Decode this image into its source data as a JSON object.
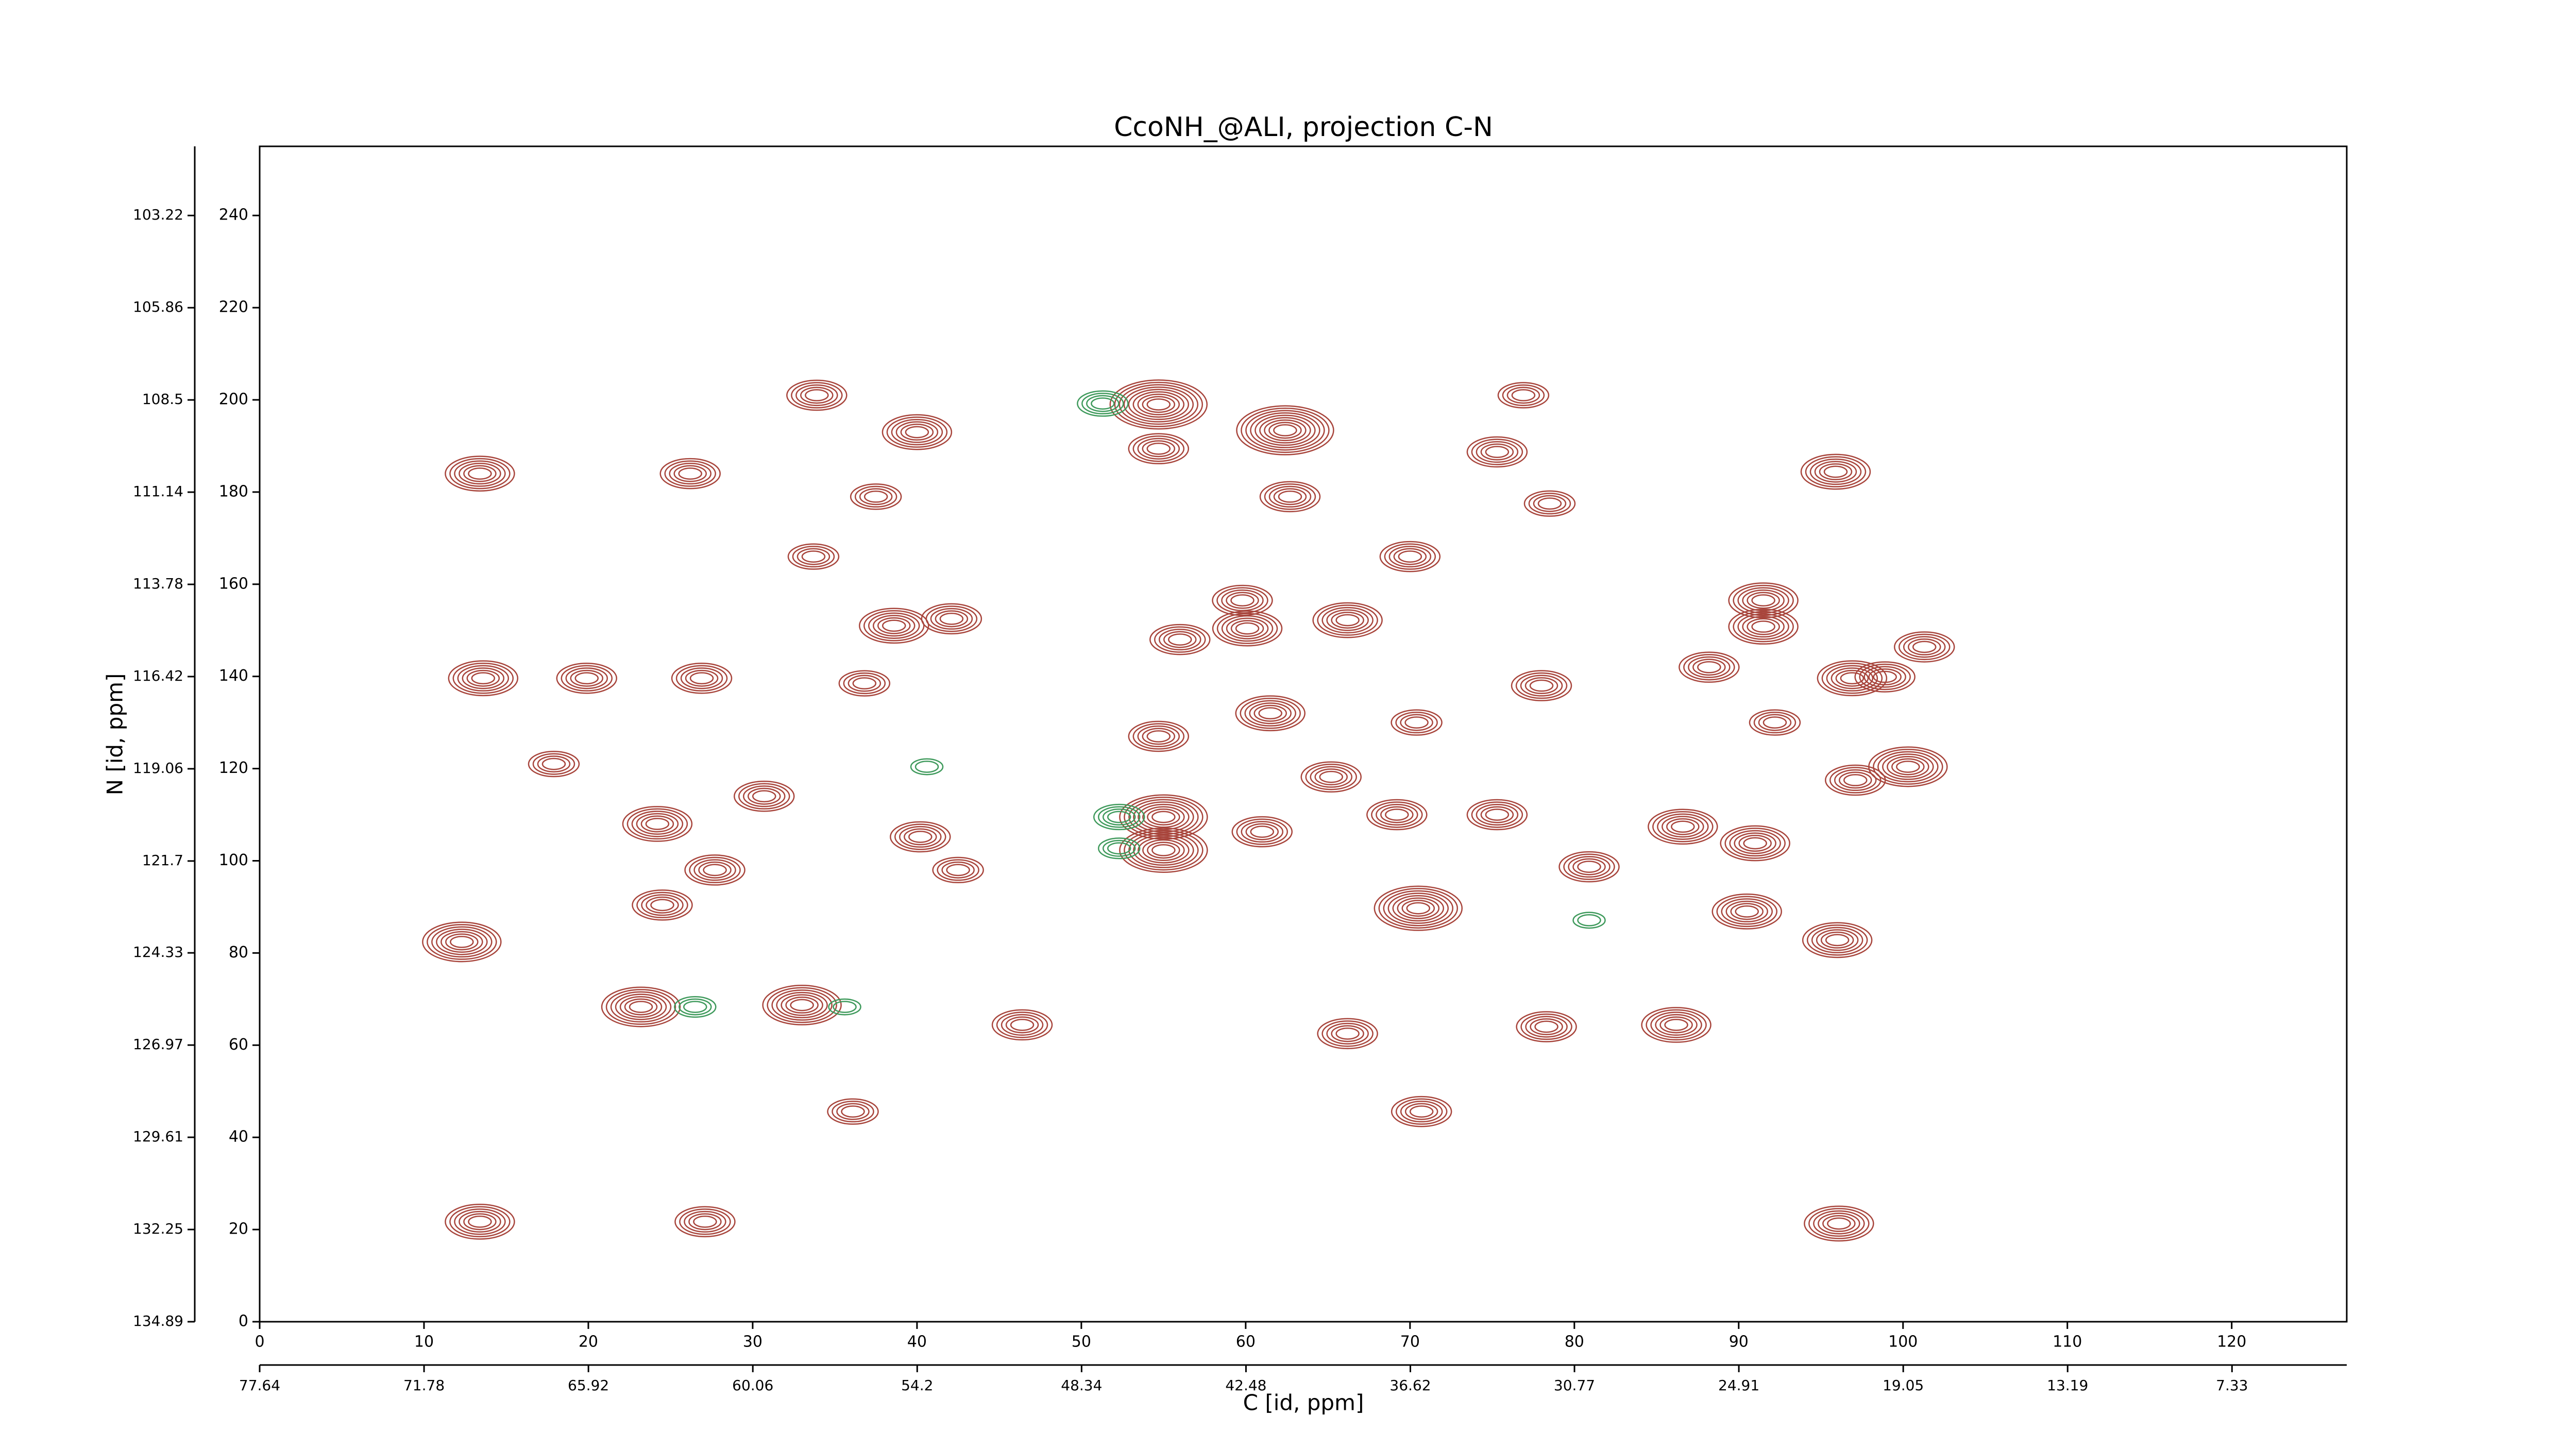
{
  "chart_data": {
    "type": "contour",
    "title": "CcoNH_@ALI, projection C-N",
    "xlabel": "C [id, ppm]",
    "ylabel": "N [id, ppm]",
    "xlim": [
      0,
      127
    ],
    "xticks": [
      0,
      10,
      20,
      30,
      40,
      50,
      60,
      70,
      80,
      90,
      100,
      110,
      120
    ],
    "ylim": [
      0,
      255
    ],
    "yticks": [
      0,
      20,
      40,
      60,
      80,
      100,
      120,
      140,
      160,
      180,
      200,
      220,
      240
    ],
    "x2lim": [
      77.64,
      3.24
    ],
    "x2ticks": [
      77.64,
      71.78,
      65.92,
      60.06,
      54.2,
      48.34,
      42.48,
      36.62,
      30.77,
      24.91,
      19.05,
      13.19,
      7.33
    ],
    "y2lim": [
      134.89,
      101.24
    ],
    "y2ticks": [
      134.89,
      132.25,
      129.61,
      126.97,
      124.33,
      121.7,
      119.06,
      116.42,
      113.78,
      111.14,
      108.5,
      105.86,
      103.22
    ],
    "positive_color": "#a8453c",
    "negative_color": "#3f9a5c",
    "peaks": [
      {
        "x": 13.4,
        "y": 184,
        "levels": 6
      },
      {
        "x": 13.6,
        "y": 139.6,
        "levels": 6
      },
      {
        "x": 12.3,
        "y": 82.4,
        "levels": 7
      },
      {
        "x": 13.4,
        "y": 21.7,
        "levels": 6
      },
      {
        "x": 23.2,
        "y": 68.3,
        "levels": 7
      },
      {
        "x": 24.2,
        "y": 108,
        "levels": 6
      },
      {
        "x": 17.9,
        "y": 121,
        "levels": 4
      },
      {
        "x": 19.9,
        "y": 139.6,
        "levels": 5
      },
      {
        "x": 26.9,
        "y": 139.6,
        "levels": 5
      },
      {
        "x": 26.2,
        "y": 184,
        "levels": 5
      },
      {
        "x": 27.1,
        "y": 21.7,
        "levels": 5
      },
      {
        "x": 33.9,
        "y": 201,
        "levels": 5
      },
      {
        "x": 40,
        "y": 193,
        "levels": 6
      },
      {
        "x": 37.5,
        "y": 179,
        "levels": 4
      },
      {
        "x": 33.7,
        "y": 166,
        "levels": 4
      },
      {
        "x": 38.6,
        "y": 151,
        "levels": 6
      },
      {
        "x": 42.1,
        "y": 152.5,
        "levels": 5
      },
      {
        "x": 36.8,
        "y": 138.5,
        "levels": 4
      },
      {
        "x": 33,
        "y": 68.7,
        "levels": 7
      },
      {
        "x": 36.1,
        "y": 45.6,
        "levels": 4
      },
      {
        "x": 46.4,
        "y": 64.4,
        "levels": 5
      },
      {
        "x": 54.7,
        "y": 199,
        "levels": 9
      },
      {
        "x": 54.7,
        "y": 189.4,
        "levels": 5
      },
      {
        "x": 56,
        "y": 148,
        "levels": 5
      },
      {
        "x": 54.7,
        "y": 127,
        "levels": 5
      },
      {
        "x": 55,
        "y": 109.5,
        "levels": 8
      },
      {
        "x": 55,
        "y": 102.3,
        "levels": 8
      },
      {
        "x": 62.4,
        "y": 193.4,
        "levels": 9
      },
      {
        "x": 62.7,
        "y": 179,
        "levels": 5
      },
      {
        "x": 59.8,
        "y": 156.5,
        "levels": 5
      },
      {
        "x": 60.1,
        "y": 150.4,
        "levels": 6
      },
      {
        "x": 61.5,
        "y": 132,
        "levels": 6
      },
      {
        "x": 66.2,
        "y": 152.2,
        "levels": 6
      },
      {
        "x": 70,
        "y": 166,
        "levels": 5
      },
      {
        "x": 70.4,
        "y": 130,
        "levels": 4
      },
      {
        "x": 70.5,
        "y": 89.7,
        "levels": 8
      },
      {
        "x": 70.7,
        "y": 45.6,
        "levels": 5
      },
      {
        "x": 66.2,
        "y": 62.5,
        "levels": 5
      },
      {
        "x": 76.9,
        "y": 201,
        "levels": 4
      },
      {
        "x": 75.3,
        "y": 188.7,
        "levels": 5
      },
      {
        "x": 78,
        "y": 138,
        "levels": 5
      },
      {
        "x": 78.3,
        "y": 64,
        "levels": 5
      },
      {
        "x": 78.5,
        "y": 177.5,
        "levels": 4
      },
      {
        "x": 86.2,
        "y": 64.4,
        "levels": 6
      },
      {
        "x": 91.5,
        "y": 156.5,
        "levels": 6
      },
      {
        "x": 91.5,
        "y": 150.8,
        "levels": 6
      },
      {
        "x": 95.9,
        "y": 184.4,
        "levels": 6
      },
      {
        "x": 96.9,
        "y": 139.6,
        "levels": 6
      },
      {
        "x": 98.9,
        "y": 139.9,
        "levels": 5
      },
      {
        "x": 100.3,
        "y": 120.4,
        "levels": 7
      },
      {
        "x": 101.3,
        "y": 146.4,
        "levels": 5
      },
      {
        "x": 96,
        "y": 82.8,
        "levels": 6
      },
      {
        "x": 96.1,
        "y": 21.3,
        "levels": 6
      },
      {
        "x": 90.5,
        "y": 89,
        "levels": 6
      },
      {
        "x": 91,
        "y": 103.8,
        "levels": 6
      },
      {
        "x": 86.6,
        "y": 107.4,
        "levels": 6
      },
      {
        "x": 80.9,
        "y": 98.7,
        "levels": 5
      },
      {
        "x": 24.5,
        "y": 90.4,
        "levels": 5
      },
      {
        "x": 27.7,
        "y": 98,
        "levels": 5
      },
      {
        "x": 30.7,
        "y": 114,
        "levels": 5
      },
      {
        "x": 40.2,
        "y": 105.2,
        "levels": 5
      },
      {
        "x": 42.5,
        "y": 98,
        "levels": 4
      },
      {
        "x": 61,
        "y": 106.3,
        "levels": 5
      },
      {
        "x": 65.2,
        "y": 118.2,
        "levels": 5
      },
      {
        "x": 75.3,
        "y": 110,
        "levels": 5
      },
      {
        "x": 69.2,
        "y": 110,
        "levels": 5
      },
      {
        "x": 88.2,
        "y": 142,
        "levels": 5
      },
      {
        "x": 92.2,
        "y": 130,
        "levels": 4
      },
      {
        "x": 97.1,
        "y": 117.5,
        "levels": 5
      }
    ],
    "negative_peaks": [
      {
        "x": 51.3,
        "y": 199.2,
        "levels": 4
      },
      {
        "x": 52.3,
        "y": 109.5,
        "levels": 4
      },
      {
        "x": 52.3,
        "y": 102.7,
        "levels": 3
      },
      {
        "x": 26.5,
        "y": 68.3,
        "levels": 3
      },
      {
        "x": 40.6,
        "y": 120.4,
        "levels": 2
      },
      {
        "x": 35.6,
        "y": 68.3,
        "levels": 2
      },
      {
        "x": 80.9,
        "y": 87.1,
        "levels": 2
      }
    ]
  }
}
